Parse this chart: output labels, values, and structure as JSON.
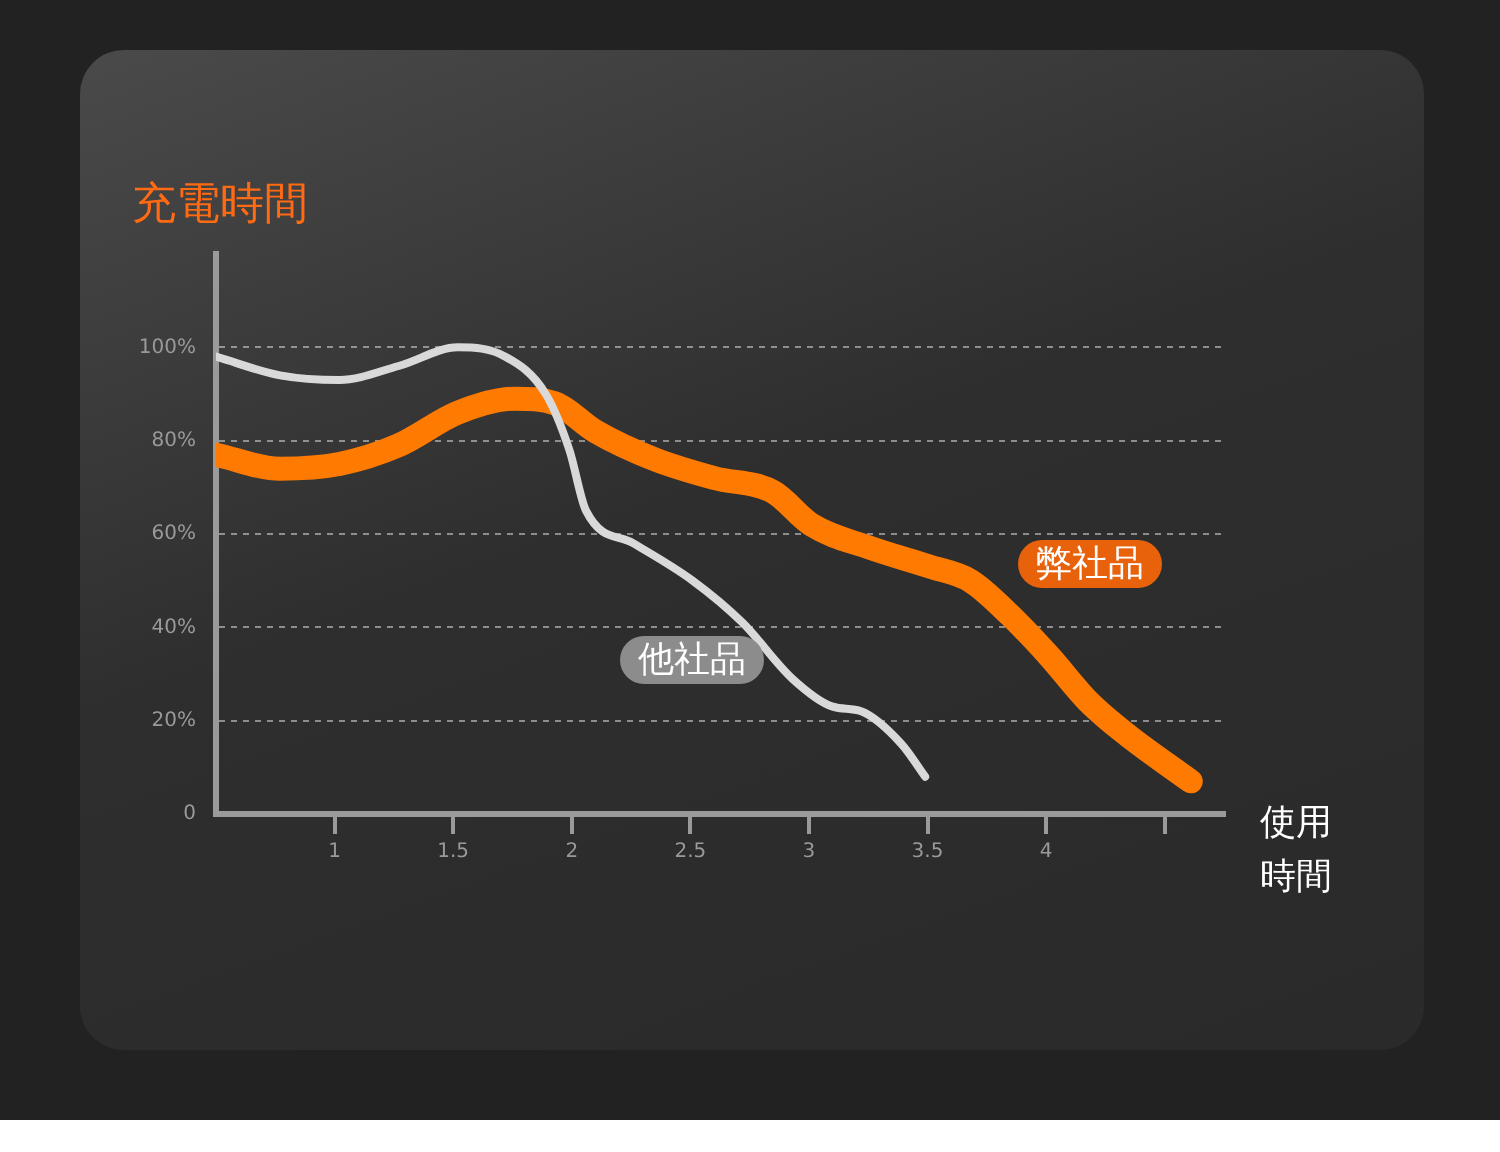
{
  "chart_data": {
    "type": "line",
    "ylabel": "充電時間",
    "xlabel": "使用時間",
    "xlim": [
      0.5,
      4.75
    ],
    "xticks": [
      1,
      1.5,
      2,
      2.5,
      3,
      3.5,
      4,
      {
        "value": 4.5,
        "label": null
      }
    ],
    "ylim": [
      0,
      120
    ],
    "yticks": [
      0,
      {
        "value": 20,
        "label": "20%"
      },
      {
        "value": 40,
        "label": "40%"
      },
      {
        "value": 60,
        "label": "60%"
      },
      {
        "value": 80,
        "label": "80%"
      },
      {
        "value": 100,
        "label": "100%"
      }
    ],
    "grid": "y",
    "legend": false,
    "marker": "none",
    "series": [
      {
        "name": "他社品",
        "color": "#d9d9d9",
        "x": [
          0.5,
          0.77,
          1.02,
          1.27,
          1.52,
          1.72,
          1.89,
          1.99,
          2.06,
          2.26,
          2.51,
          2.72,
          2.93,
          3.1,
          3.22,
          3.39,
          3.49
        ],
        "values": [
          98,
          94,
          93,
          96,
          100,
          98,
          90,
          78,
          65,
          58,
          50,
          41,
          29,
          23,
          22,
          15,
          8
        ]
      },
      {
        "name": "弊社品",
        "color": "#ff7a00",
        "x": [
          0.5,
          0.77,
          1.02,
          1.27,
          1.52,
          1.76,
          1.93,
          2.1,
          2.35,
          2.6,
          2.85,
          3.01,
          3.26,
          3.51,
          3.68,
          3.84,
          4.01,
          4.18,
          4.34,
          4.61
        ],
        "values": [
          77,
          74,
          75,
          79,
          86,
          89,
          88,
          82,
          76,
          72,
          69,
          62,
          57,
          53,
          50,
          43,
          34,
          24,
          17,
          7
        ]
      }
    ]
  }
}
